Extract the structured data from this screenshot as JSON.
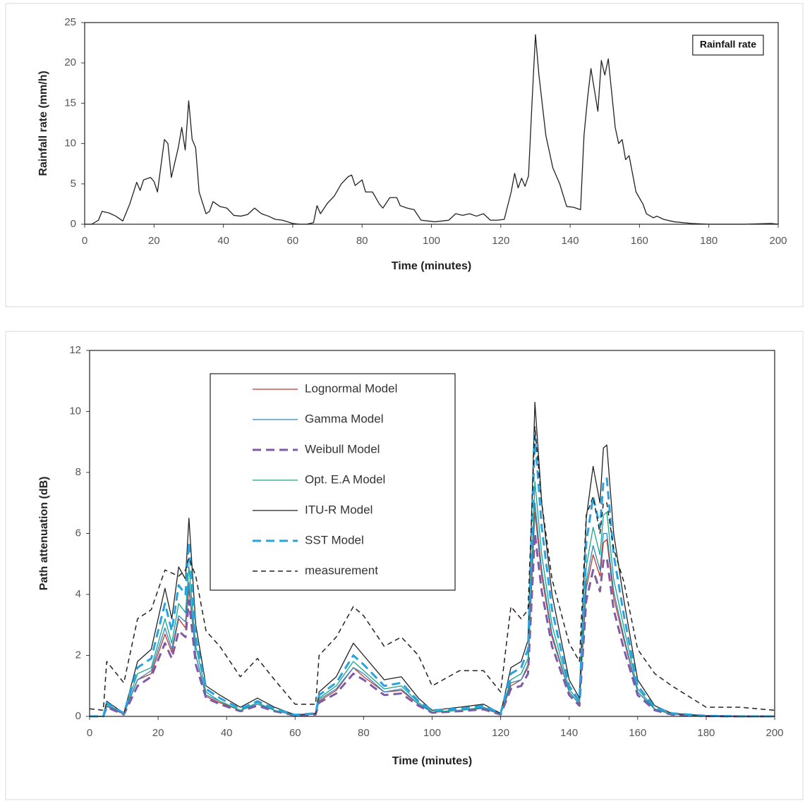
{
  "chart_data": [
    {
      "type": "line",
      "xlabel": "Time (minutes)",
      "ylabel": "Rainfall rate (mm/h)",
      "x": [
        0,
        2,
        4,
        5,
        7,
        9,
        11,
        13,
        15,
        16,
        17,
        19,
        20,
        21,
        23,
        24,
        25,
        27,
        28,
        29,
        30,
        31,
        32,
        33,
        35,
        36,
        37,
        39,
        41,
        43,
        45,
        47,
        49,
        51,
        53,
        55,
        57,
        60,
        62,
        64,
        66,
        67,
        68,
        70,
        72,
        74,
        76,
        77,
        78,
        80,
        81,
        83,
        85,
        86,
        88,
        90,
        91,
        93,
        95,
        97,
        99,
        101,
        103,
        105,
        107,
        109,
        111,
        113,
        115,
        117,
        119,
        121,
        123,
        124,
        125,
        126,
        127,
        128,
        129,
        130,
        131,
        133,
        135,
        137,
        139,
        141,
        143,
        144,
        145,
        146,
        148,
        149,
        150,
        151,
        153,
        154,
        155,
        156,
        157,
        159,
        161,
        162,
        164,
        165,
        167,
        170,
        175,
        180,
        190,
        198,
        200
      ],
      "series": [
        {
          "name": "Rainfall rate",
          "color": "#222222",
          "linestyle": "solid",
          "linewidth": 1.3,
          "values": [
            0,
            0,
            0.5,
            1.6,
            1.4,
            1,
            0.4,
            2.5,
            5.2,
            4.2,
            5.5,
            5.8,
            5.3,
            4,
            10.5,
            10,
            5.8,
            9.5,
            12,
            9.2,
            15.3,
            10.5,
            9.5,
            4,
            1.3,
            1.6,
            2.8,
            2.2,
            2,
            1.1,
            1,
            1.2,
            2,
            1.3,
            1,
            0.6,
            0.5,
            0.1,
            0,
            0,
            0.2,
            2.3,
            1.3,
            2.6,
            3.5,
            5,
            5.9,
            6.1,
            4.8,
            5.5,
            4,
            4,
            2.5,
            2,
            3.3,
            3.3,
            2.3,
            2,
            1.8,
            0.5,
            0.4,
            0.3,
            0.4,
            0.5,
            1.3,
            1.1,
            1.3,
            1,
            1.3,
            0.5,
            0.5,
            0.6,
            4,
            6.3,
            4.5,
            5.7,
            4.7,
            6,
            15,
            23.5,
            18.5,
            11,
            7,
            5,
            2.2,
            2.1,
            1.8,
            11,
            15.5,
            19.3,
            14,
            20.3,
            18.5,
            20.5,
            12,
            10,
            10.5,
            8,
            8.5,
            4,
            2.5,
            1.3,
            0.8,
            1,
            0.6,
            0.3,
            0.1,
            0,
            0,
            0.1,
            0
          ]
        }
      ],
      "xlim": [
        0,
        200
      ],
      "xticks": [
        0,
        20,
        40,
        60,
        80,
        100,
        120,
        140,
        160,
        180,
        200
      ],
      "ylim": [
        0,
        25
      ],
      "yticks": [
        0,
        5,
        10,
        15,
        20,
        25
      ],
      "grid": false,
      "legend": "upper right",
      "legend_lines": false
    },
    {
      "type": "line",
      "xlabel": "Time (minutes)",
      "ylabel": "Path attenuation (dB)",
      "x": [
        0,
        4,
        5,
        10,
        14,
        18,
        22,
        24,
        26,
        28,
        29,
        31,
        34,
        38,
        44,
        49,
        54,
        60,
        66,
        67,
        72,
        77,
        80,
        86,
        91,
        96,
        100,
        108,
        115,
        120,
        123,
        126,
        128,
        130,
        132,
        135,
        140,
        143,
        145,
        147,
        149,
        150,
        151,
        153,
        156,
        160,
        165,
        170,
        180,
        190,
        200
      ],
      "series": [
        {
          "name": "Lognormal Model",
          "color": "#c0392b",
          "linestyle": "solid",
          "linewidth": 1.3,
          "values": [
            0,
            0,
            0.33,
            0.07,
            1.2,
            1.4,
            2.7,
            2.1,
            3.2,
            2.9,
            4.2,
            2.0,
            0.65,
            0.45,
            0.2,
            0.4,
            0.2,
            0.03,
            0.07,
            0.5,
            0.85,
            1.6,
            1.3,
            0.8,
            0.85,
            0.4,
            0.13,
            0.2,
            0.26,
            0.07,
            1.0,
            1.2,
            1.6,
            6.7,
            4.6,
            2.6,
            0.8,
            0.4,
            4.2,
            5.3,
            4.6,
            5.7,
            5.8,
            3.9,
            2.5,
            0.8,
            0.23,
            0.07,
            0.01,
            0,
            0
          ]
        },
        {
          "name": "Gamma Model",
          "color": "#2e86c1",
          "linestyle": "solid",
          "linewidth": 1.3,
          "values": [
            0,
            0,
            0.35,
            0.1,
            1.2,
            1.5,
            2.9,
            2.2,
            3.3,
            3.1,
            4.4,
            2.0,
            0.7,
            0.5,
            0.2,
            0.4,
            0.2,
            0.03,
            0.07,
            0.55,
            0.9,
            1.6,
            1.4,
            0.8,
            0.9,
            0.4,
            0.14,
            0.2,
            0.27,
            0.07,
            1.1,
            1.2,
            1.7,
            7.0,
            4.8,
            2.7,
            0.8,
            0.4,
            4.4,
            5.6,
            4.8,
            6.0,
            6.0,
            4.1,
            2.6,
            0.8,
            0.24,
            0.07,
            0.01,
            0,
            0
          ]
        },
        {
          "name": "Weibull Model",
          "color": "#7d5ba6",
          "linestyle": "dashed",
          "linewidth": 3,
          "values": [
            0,
            0,
            0.3,
            0.06,
            1.0,
            1.3,
            2.4,
            1.9,
            2.8,
            2.6,
            3.8,
            1.7,
            0.6,
            0.4,
            0.17,
            0.35,
            0.17,
            0.03,
            0.06,
            0.45,
            0.75,
            1.4,
            1.2,
            0.7,
            0.75,
            0.35,
            0.12,
            0.17,
            0.23,
            0.06,
            0.9,
            1.0,
            1.4,
            6.0,
            4.1,
            2.3,
            0.7,
            0.35,
            3.8,
            4.8,
            4.1,
            5.1,
            5.2,
            3.5,
            2.2,
            0.7,
            0.2,
            0.06,
            0.01,
            0,
            0
          ]
        },
        {
          "name": "Opt. E.A Model",
          "color": "#17a589",
          "linestyle": "solid",
          "linewidth": 1.3,
          "values": [
            0,
            0,
            0.4,
            0.1,
            1.4,
            1.6,
            3.2,
            2.4,
            3.7,
            3.4,
            4.9,
            2.3,
            0.8,
            0.5,
            0.2,
            0.45,
            0.2,
            0.04,
            0.1,
            0.6,
            1.0,
            1.8,
            1.5,
            0.9,
            1.0,
            0.45,
            0.15,
            0.2,
            0.3,
            0.1,
            1.2,
            1.4,
            1.9,
            7.7,
            5.3,
            3.0,
            0.9,
            0.45,
            4.9,
            6.2,
            5.3,
            6.6,
            6.7,
            4.5,
            2.9,
            0.9,
            0.25,
            0.08,
            0.02,
            0,
            0
          ]
        },
        {
          "name": "ITU-R Model",
          "color": "#222222",
          "linestyle": "solid",
          "linewidth": 1.3,
          "values": [
            0,
            0,
            0.5,
            0.1,
            1.8,
            2.2,
            4.2,
            3.2,
            4.9,
            4.5,
            6.5,
            3.0,
            1.0,
            0.7,
            0.3,
            0.6,
            0.3,
            0.05,
            0.1,
            0.8,
            1.3,
            2.4,
            2.0,
            1.2,
            1.3,
            0.6,
            0.2,
            0.3,
            0.4,
            0.1,
            1.6,
            1.8,
            2.5,
            10.3,
            7.0,
            4.0,
            1.2,
            0.6,
            6.5,
            8.2,
            7.0,
            8.8,
            8.9,
            6.0,
            3.8,
            1.2,
            0.35,
            0.1,
            0.02,
            0,
            0
          ]
        },
        {
          "name": "SST Model",
          "color": "#29a3e0",
          "linestyle": "dashed",
          "linewidth": 3,
          "values": [
            0,
            0,
            0.45,
            0.1,
            1.6,
            1.9,
            3.7,
            2.8,
            4.3,
            4.0,
            5.7,
            2.6,
            0.9,
            0.6,
            0.25,
            0.5,
            0.25,
            0.05,
            0.1,
            0.7,
            1.1,
            2.0,
            1.7,
            1.0,
            1.1,
            0.5,
            0.2,
            0.25,
            0.35,
            0.1,
            1.4,
            1.6,
            2.2,
            9.2,
            6.2,
            3.5,
            1.0,
            0.5,
            5.7,
            7.2,
            6.2,
            7.7,
            7.8,
            5.3,
            3.3,
            1.0,
            0.3,
            0.1,
            0.02,
            0,
            0
          ]
        },
        {
          "name": "measurement",
          "color": "#222222",
          "linestyle": "dashed",
          "linewidth": 1.5,
          "values": [
            0.25,
            0.2,
            1.8,
            1.1,
            3.2,
            3.5,
            4.8,
            4.7,
            4.6,
            4.8,
            5.2,
            4.6,
            2.8,
            2.3,
            1.3,
            1.9,
            1.2,
            0.4,
            0.4,
            2.0,
            2.6,
            3.6,
            3.3,
            2.3,
            2.6,
            2.0,
            1.0,
            1.5,
            1.5,
            0.8,
            3.6,
            3.2,
            3.5,
            9.5,
            7.0,
            4.5,
            2.4,
            1.8,
            6.6,
            7.2,
            6.0,
            7.0,
            7.0,
            5.5,
            4.4,
            2.2,
            1.4,
            1.0,
            0.3,
            0.3,
            0.2
          ]
        }
      ],
      "xlim": [
        0,
        200
      ],
      "xticks": [
        0,
        20,
        40,
        60,
        80,
        100,
        120,
        140,
        160,
        180,
        200
      ],
      "ylim": [
        0,
        12
      ],
      "yticks": [
        0,
        2,
        4,
        6,
        8,
        10,
        12
      ],
      "grid": false,
      "legend": "upper left",
      "legend_lines": true
    }
  ]
}
